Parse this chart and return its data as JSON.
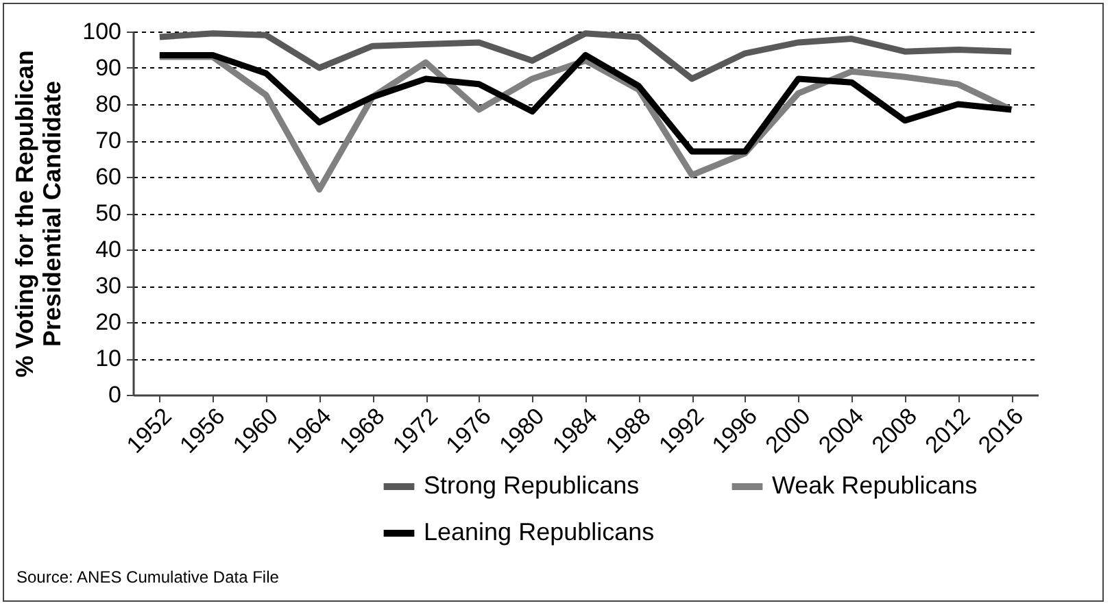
{
  "chart_data": {
    "type": "line",
    "ylabel": "% Voting for the Republican\nPresidential Candidate",
    "categories": [
      "1952",
      "1956",
      "1960",
      "1964",
      "1968",
      "1972",
      "1976",
      "1980",
      "1984",
      "1988",
      "1992",
      "1996",
      "2000",
      "2004",
      "2008",
      "2012",
      "2016"
    ],
    "series": [
      {
        "name": "Strong Republicans",
        "color": "#595959",
        "values": [
          98.5,
          99.5,
          99,
          90,
          96,
          96.5,
          97,
          92,
          99.5,
          98.5,
          87,
          94,
          97,
          98,
          94.5,
          95,
          94.5
        ]
      },
      {
        "name": "Weak Republicans",
        "color": "#808080",
        "values": [
          93,
          93,
          82.5,
          56.5,
          82,
          91.5,
          78.5,
          87,
          92,
          84,
          60.5,
          66.5,
          83,
          89,
          87.5,
          85.5,
          78.5
        ]
      },
      {
        "name": "Leaning Republicans",
        "color": "#000000",
        "values": [
          93.5,
          93.5,
          88.5,
          75,
          82,
          87,
          85.5,
          78,
          93.5,
          85,
          67,
          67,
          87,
          86,
          75.5,
          80,
          78.5
        ]
      }
    ],
    "ylim": [
      0,
      100
    ],
    "yticks": [
      0,
      10,
      20,
      30,
      40,
      50,
      60,
      70,
      80,
      90,
      100
    ],
    "grid": "y",
    "legend": "bottom",
    "marker": "none",
    "line_style": "solid",
    "annotations": [
      "Source: ANES Cumulative Data File"
    ]
  }
}
